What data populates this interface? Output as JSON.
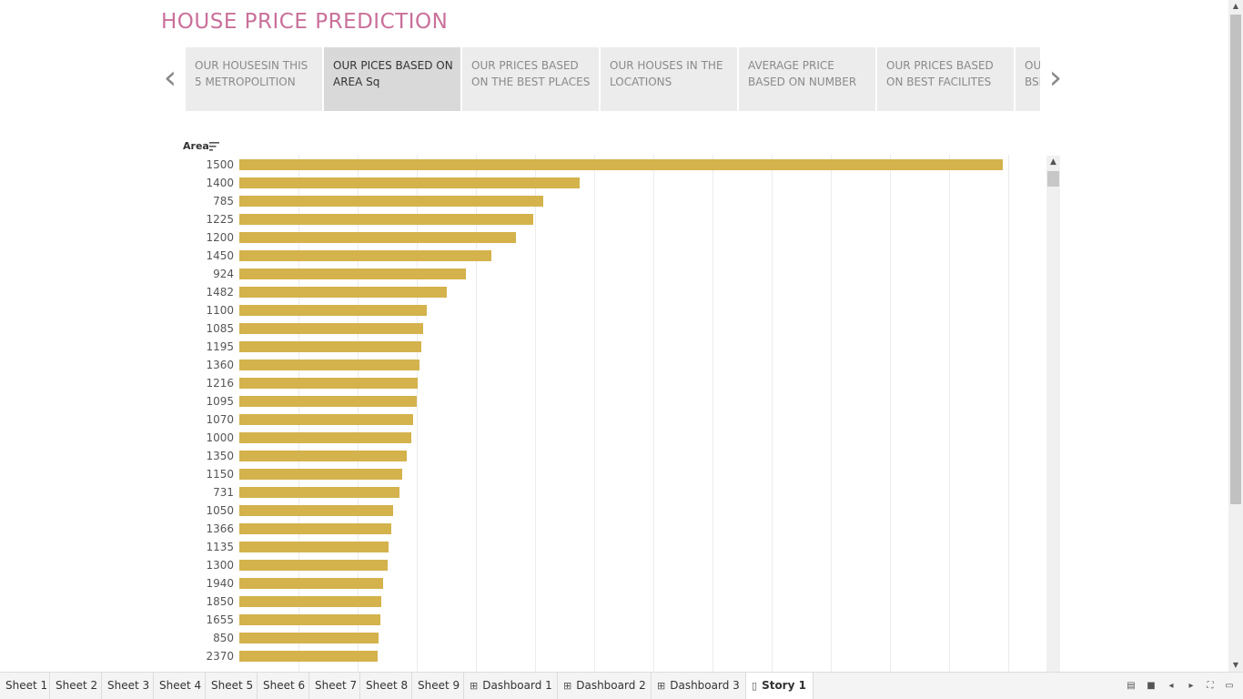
{
  "story": {
    "title": "HOUSE PRICE PREDICTION",
    "points": [
      {
        "label": "OUR HOUSESIN THIS 5 METROPOLITION",
        "active": false
      },
      {
        "label": "OUR PICES BASED ON AREA Sq",
        "active": true
      },
      {
        "label": "OUR PRICES BASED ON THE BEST PLACES",
        "active": false
      },
      {
        "label": "OUR HOUSES IN THE LOCATIONS",
        "active": false
      },
      {
        "label": "AVERAGE PRICE BASED ON NUMBER",
        "active": false
      },
      {
        "label": "OUR PRICES BASED ON BEST FACILITES",
        "active": false
      },
      {
        "label": "OU BSI",
        "active": false
      }
    ],
    "prev_icon": "chevron-left-icon",
    "next_icon": "chevron-right-icon"
  },
  "chart_data": {
    "type": "bar",
    "orientation": "horizontal",
    "ylabel": "Area",
    "sort_icon": "sort-descending-icon",
    "categories": [
      "1500",
      "1400",
      "785",
      "1225",
      "1200",
      "1450",
      "924",
      "1482",
      "1100",
      "1085",
      "1195",
      "1360",
      "1216",
      "1095",
      "1070",
      "1000",
      "1350",
      "1150",
      "731",
      "1050",
      "1366",
      "1135",
      "1300",
      "1940",
      "1850",
      "1655",
      "850",
      "2370"
    ],
    "values": [
      844,
      376,
      336,
      325,
      306,
      279,
      250,
      229,
      207,
      203,
      201,
      199,
      197,
      196,
      192,
      190,
      185,
      180,
      177,
      170,
      168,
      165,
      164,
      159,
      157,
      156,
      154,
      153
    ],
    "xlim": [
      0,
      887
    ],
    "grid": true,
    "bar_color": "#d4b24c"
  },
  "tabs": [
    {
      "label": "Sheet 1",
      "icon": "",
      "active": false
    },
    {
      "label": "Sheet 2",
      "icon": "",
      "active": false
    },
    {
      "label": "Sheet 3",
      "icon": "",
      "active": false
    },
    {
      "label": "Sheet 4",
      "icon": "",
      "active": false
    },
    {
      "label": "Sheet 5",
      "icon": "",
      "active": false
    },
    {
      "label": "Sheet 6",
      "icon": "",
      "active": false
    },
    {
      "label": "Sheet 7",
      "icon": "",
      "active": false
    },
    {
      "label": "Sheet 8",
      "icon": "",
      "active": false
    },
    {
      "label": "Sheet 9",
      "icon": "",
      "active": false
    },
    {
      "label": "Dashboard 1",
      "icon": "dashboard-icon",
      "active": false
    },
    {
      "label": "Dashboard 2",
      "icon": "dashboard-icon",
      "active": false
    },
    {
      "label": "Dashboard 3",
      "icon": "dashboard-icon",
      "active": false
    },
    {
      "label": "Story 1",
      "icon": "story-icon",
      "active": true
    }
  ],
  "bottom_controls": [
    "show-filmstrip-icon",
    "show-tabs-icon",
    "previous-icon",
    "next-icon",
    "fullscreen-icon",
    "presentation-icon"
  ]
}
